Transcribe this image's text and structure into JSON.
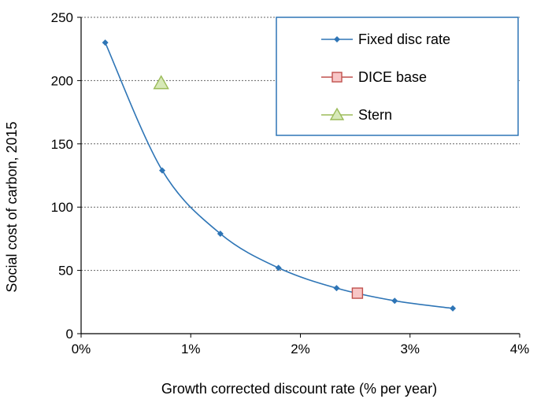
{
  "chart_data": {
    "type": "line",
    "xlabel": "Growth corrected discount rate (% per year)",
    "ylabel": "Social cost of carbon, 2015",
    "xlim": [
      0,
      4
    ],
    "ylim": [
      0,
      250
    ],
    "x_ticks": [
      "0%",
      "1%",
      "2%",
      "3%",
      "4%"
    ],
    "y_ticks": [
      "0",
      "50",
      "100",
      "150",
      "200",
      "250"
    ],
    "grid": "horizontal-dashed",
    "legend_position": "top-right",
    "series": [
      {
        "name": "Fixed disc rate",
        "marker": "diamond",
        "color": "#2e75b6",
        "x": [
          0.22,
          0.74,
          1.27,
          1.8,
          2.33,
          2.86,
          3.39
        ],
        "y": [
          230,
          129,
          79,
          52,
          36,
          26,
          20
        ]
      },
      {
        "name": "DICE base",
        "marker": "square",
        "color": "#c0504d",
        "fill": "#f8c6c6",
        "x": [
          2.52
        ],
        "y": [
          32
        ]
      },
      {
        "name": "Stern",
        "marker": "triangle",
        "color": "#9bbb59",
        "fill": "#d7e9b8",
        "x": [
          0.73
        ],
        "y": [
          198
        ]
      }
    ]
  }
}
